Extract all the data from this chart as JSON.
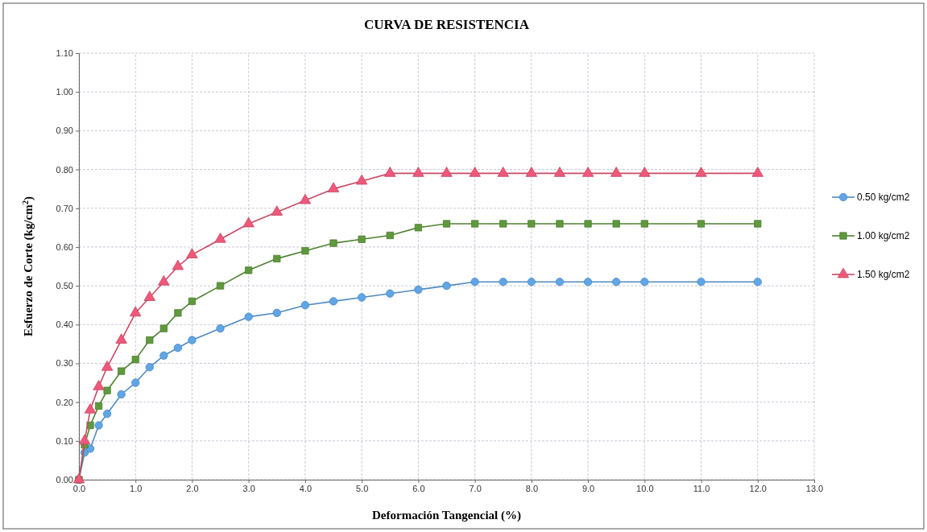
{
  "chart_data": {
    "type": "line",
    "title": "CURVA DE RESISTENCIA",
    "xlabel": "Deformación Tangencial (%)",
    "ylabel": "Esfuerzo de Corte (kg/cm$^{2}$)",
    "x": [
      0,
      0.1,
      0.2,
      0.35,
      0.5,
      0.75,
      1.0,
      1.25,
      1.5,
      1.75,
      2.0,
      2.5,
      3.0,
      3.5,
      4.0,
      4.5,
      5.0,
      5.5,
      6.0,
      6.5,
      7.0,
      7.5,
      8.0,
      8.5,
      9.0,
      9.5,
      10.0,
      11.0,
      12.0
    ],
    "series": [
      {
        "name": "0.50 kg/cm2",
        "color": "#5fa6e8",
        "marker": "circle",
        "values": [
          0,
          0.07,
          0.08,
          0.14,
          0.17,
          0.22,
          0.25,
          0.29,
          0.32,
          0.34,
          0.36,
          0.39,
          0.42,
          0.43,
          0.45,
          0.46,
          0.47,
          0.48,
          0.49,
          0.5,
          0.51,
          0.51,
          0.51,
          0.51,
          0.51,
          0.51,
          0.51,
          0.51,
          0.51
        ]
      },
      {
        "name": "1.00 kg/cm2",
        "color": "#5e9a3c",
        "marker": "square",
        "values": [
          0,
          0.09,
          0.14,
          0.19,
          0.23,
          0.28,
          0.31,
          0.36,
          0.39,
          0.43,
          0.46,
          0.5,
          0.54,
          0.57,
          0.59,
          0.61,
          0.62,
          0.63,
          0.65,
          0.66,
          0.66,
          0.66,
          0.66,
          0.66,
          0.66,
          0.66,
          0.66,
          0.66,
          0.66
        ]
      },
      {
        "name": "1.50 kg/cm2",
        "color": "#f0587a",
        "marker": "triangle",
        "values": [
          0,
          0.1,
          0.18,
          0.24,
          0.29,
          0.36,
          0.43,
          0.47,
          0.51,
          0.55,
          0.58,
          0.62,
          0.66,
          0.69,
          0.72,
          0.75,
          0.77,
          0.79,
          0.79,
          0.79,
          0.79,
          0.79,
          0.79,
          0.79,
          0.79,
          0.79,
          0.79,
          0.79,
          0.79
        ]
      }
    ],
    "xlim": [
      0,
      13
    ],
    "xticks": [
      {
        "value": 0,
        "label": "0.0"
      },
      {
        "value": 1,
        "label": "1.0"
      },
      {
        "value": 2,
        "label": "2.0"
      },
      {
        "value": 3,
        "label": "3.0"
      },
      {
        "value": 4,
        "label": "4.0"
      },
      {
        "value": 5,
        "label": "5.0"
      },
      {
        "value": 6,
        "label": "6.0"
      },
      {
        "value": 7,
        "label": "7.0"
      },
      {
        "value": 8,
        "label": "8.0"
      },
      {
        "value": 9,
        "label": "9.0"
      },
      {
        "value": 10,
        "label": "10.0"
      },
      {
        "value": 11,
        "label": "11.0"
      },
      {
        "value": 12,
        "label": "12.0"
      },
      {
        "value": 13,
        "label": "13.0"
      }
    ],
    "ylim": [
      0,
      1.1
    ],
    "yticks": [
      {
        "value": 0,
        "label": "0.00"
      },
      {
        "value": 0.1,
        "label": "0.10"
      },
      {
        "value": 0.2,
        "label": "0.20"
      },
      {
        "value": 0.3,
        "label": "0.30"
      },
      {
        "value": 0.4,
        "label": "0.40"
      },
      {
        "value": 0.5,
        "label": "0.50"
      },
      {
        "value": 0.6,
        "label": "0.60"
      },
      {
        "value": 0.7,
        "label": "0.70"
      },
      {
        "value": 0.8,
        "label": "0.80"
      },
      {
        "value": 0.9,
        "label": "0.90"
      },
      {
        "value": 1.0,
        "label": "1.00"
      },
      {
        "value": 1.1,
        "label": "1.10"
      }
    ],
    "grid": true,
    "legend": "right",
    "line_style": "solid"
  }
}
